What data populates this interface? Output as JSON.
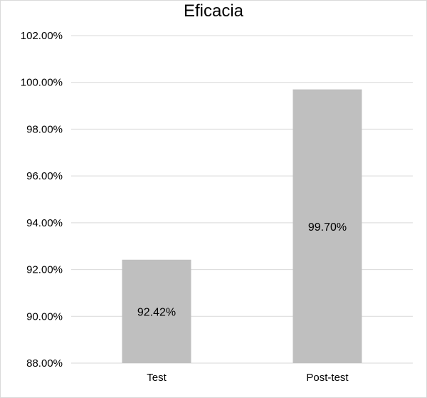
{
  "chart_data": {
    "type": "bar",
    "title": "Eficacia",
    "categories": [
      "Test",
      "Post-test"
    ],
    "values": [
      92.42,
      99.7
    ],
    "data_labels": [
      "92.42%",
      "99.70%"
    ],
    "ylim": [
      88,
      102
    ],
    "yticks": [
      88,
      90,
      92,
      94,
      96,
      98,
      100,
      102
    ],
    "ytick_labels": [
      "88.00%",
      "90.00%",
      "92.00%",
      "94.00%",
      "96.00%",
      "98.00%",
      "100.00%",
      "102.00%"
    ],
    "grid": true,
    "bar_color": "#bfbfbf",
    "grid_color": "#d9d9d9"
  }
}
